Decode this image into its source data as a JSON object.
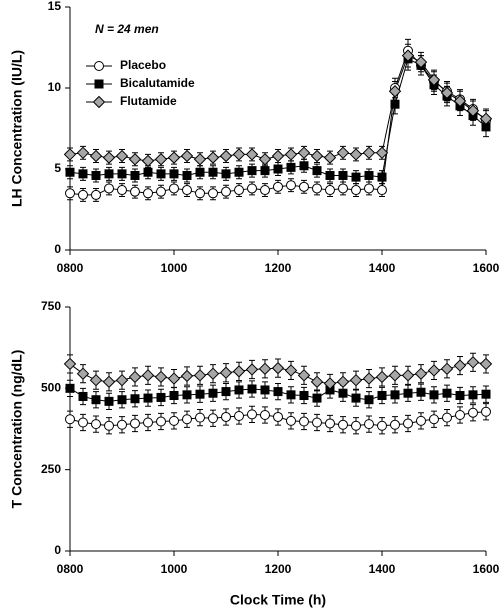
{
  "chart_data": [
    {
      "type": "line",
      "ylabel": "LH Concentration (IU/L)",
      "annotation": "N = 24 men",
      "legend": true,
      "xlim": [
        8,
        16
      ],
      "xticks": [
        {
          "value": 8,
          "label": "0800"
        },
        {
          "value": 10,
          "label": "1000"
        },
        {
          "value": 12,
          "label": "1200"
        },
        {
          "value": 14,
          "label": "1400"
        },
        {
          "value": 16,
          "label": "1600"
        }
      ],
      "ylim": [
        0,
        15
      ],
      "yticks": [
        0,
        5,
        10,
        15
      ],
      "x": [
        8,
        8.25,
        8.5,
        8.75,
        9,
        9.25,
        9.5,
        9.75,
        10,
        10.25,
        10.5,
        10.75,
        11,
        11.25,
        11.5,
        11.75,
        12,
        12.25,
        12.5,
        12.75,
        13,
        13.25,
        13.5,
        13.75,
        14,
        14.25,
        14.5,
        14.75,
        15,
        15.25,
        15.5,
        15.75,
        16
      ],
      "series": [
        {
          "name": "Placebo",
          "color": "#ffffff",
          "marker": "circle",
          "values": [
            3.5,
            3.4,
            3.4,
            3.8,
            3.7,
            3.6,
            3.5,
            3.6,
            3.8,
            3.7,
            3.5,
            3.5,
            3.6,
            3.7,
            3.8,
            3.7,
            3.9,
            4.0,
            3.9,
            3.8,
            3.7,
            3.8,
            3.7,
            3.8,
            3.7,
            10.0,
            12.3,
            11.4,
            10.4,
            9.8,
            9.3,
            8.7,
            8.0
          ],
          "errors": [
            0.4,
            0.4,
            0.4,
            0.4,
            0.4,
            0.4,
            0.4,
            0.4,
            0.4,
            0.4,
            0.4,
            0.4,
            0.4,
            0.4,
            0.4,
            0.4,
            0.4,
            0.4,
            0.4,
            0.4,
            0.4,
            0.4,
            0.4,
            0.4,
            0.4,
            0.6,
            0.7,
            0.6,
            0.6,
            0.6,
            0.6,
            0.6,
            0.6
          ]
        },
        {
          "name": "Bicalutamide",
          "color": "#000000",
          "marker": "square",
          "values": [
            4.8,
            4.7,
            4.6,
            4.7,
            4.7,
            4.6,
            4.8,
            4.7,
            4.7,
            4.6,
            4.8,
            4.8,
            4.7,
            4.8,
            4.9,
            4.9,
            5.0,
            5.1,
            5.2,
            4.9,
            4.6,
            4.6,
            4.5,
            4.6,
            4.5,
            9.0,
            11.8,
            11.4,
            10.2,
            9.5,
            8.9,
            8.3,
            7.6
          ],
          "errors": [
            0.4,
            0.4,
            0.4,
            0.4,
            0.4,
            0.4,
            0.4,
            0.4,
            0.4,
            0.4,
            0.4,
            0.4,
            0.4,
            0.4,
            0.4,
            0.4,
            0.4,
            0.4,
            0.4,
            0.4,
            0.4,
            0.4,
            0.4,
            0.4,
            0.4,
            0.6,
            0.7,
            0.6,
            0.6,
            0.6,
            0.6,
            0.6,
            0.6
          ]
        },
        {
          "name": "Flutamide",
          "color": "#a6a6a6",
          "marker": "diamond",
          "values": [
            5.9,
            6.0,
            5.8,
            5.7,
            5.8,
            5.6,
            5.5,
            5.6,
            5.7,
            5.8,
            5.6,
            5.7,
            5.8,
            5.9,
            5.9,
            5.6,
            5.8,
            5.9,
            6.0,
            5.8,
            5.7,
            6.0,
            5.9,
            6.0,
            6.0,
            9.8,
            12.0,
            11.6,
            10.5,
            9.7,
            9.2,
            8.6,
            8.1
          ],
          "errors": [
            0.4,
            0.4,
            0.4,
            0.4,
            0.4,
            0.4,
            0.4,
            0.4,
            0.4,
            0.4,
            0.4,
            0.4,
            0.4,
            0.4,
            0.4,
            0.4,
            0.4,
            0.4,
            0.4,
            0.4,
            0.4,
            0.4,
            0.4,
            0.4,
            0.4,
            0.6,
            0.7,
            0.6,
            0.6,
            0.6,
            0.6,
            0.6,
            0.6
          ]
        }
      ]
    },
    {
      "type": "line",
      "ylabel": "T Concentration (ng/dL)",
      "xlabel": "Clock Time (h)",
      "legend": false,
      "xlim": [
        8,
        16
      ],
      "xticks": [
        {
          "value": 8,
          "label": "0800"
        },
        {
          "value": 10,
          "label": "1000"
        },
        {
          "value": 12,
          "label": "1200"
        },
        {
          "value": 14,
          "label": "1400"
        },
        {
          "value": 16,
          "label": "1600"
        }
      ],
      "ylim": [
        0,
        750
      ],
      "yticks": [
        0,
        250,
        500,
        750
      ],
      "x": [
        8,
        8.25,
        8.5,
        8.75,
        9,
        9.25,
        9.5,
        9.75,
        10,
        10.25,
        10.5,
        10.75,
        11,
        11.25,
        11.5,
        11.75,
        12,
        12.25,
        12.5,
        12.75,
        13,
        13.25,
        13.5,
        13.75,
        14,
        14.25,
        14.5,
        14.75,
        15,
        15.25,
        15.5,
        15.75,
        16
      ],
      "series": [
        {
          "color": "#ffffff",
          "marker": "circle",
          "values": [
            405,
            395,
            390,
            385,
            388,
            392,
            395,
            398,
            400,
            405,
            410,
            408,
            412,
            415,
            420,
            418,
            412,
            400,
            398,
            395,
            392,
            388,
            385,
            390,
            385,
            388,
            392,
            400,
            405,
            410,
            418,
            425,
            428
          ],
          "errors": [
            25,
            25,
            25,
            25,
            25,
            25,
            25,
            25,
            25,
            25,
            25,
            25,
            25,
            25,
            25,
            25,
            25,
            25,
            25,
            25,
            25,
            25,
            25,
            25,
            25,
            25,
            25,
            25,
            25,
            25,
            25,
            25,
            25
          ]
        },
        {
          "color": "#000000",
          "marker": "square",
          "values": [
            500,
            475,
            465,
            460,
            465,
            468,
            470,
            472,
            478,
            480,
            482,
            485,
            490,
            495,
            498,
            495,
            490,
            480,
            478,
            470,
            495,
            485,
            470,
            465,
            478,
            480,
            485,
            488,
            480,
            485,
            478,
            480,
            482
          ],
          "errors": [
            25,
            25,
            25,
            25,
            25,
            25,
            25,
            25,
            25,
            25,
            25,
            25,
            25,
            25,
            25,
            25,
            25,
            25,
            25,
            25,
            25,
            25,
            25,
            25,
            25,
            25,
            25,
            25,
            25,
            25,
            25,
            25,
            25
          ]
        },
        {
          "color": "#a6a6a6",
          "marker": "diamond",
          "values": [
            575,
            545,
            525,
            520,
            525,
            535,
            540,
            535,
            530,
            538,
            540,
            545,
            548,
            552,
            558,
            560,
            562,
            555,
            540,
            520,
            515,
            520,
            525,
            530,
            535,
            540,
            540,
            545,
            555,
            560,
            570,
            580,
            575
          ],
          "errors": [
            28,
            28,
            28,
            28,
            28,
            28,
            28,
            28,
            28,
            28,
            28,
            28,
            28,
            28,
            28,
            28,
            28,
            28,
            28,
            28,
            28,
            28,
            28,
            28,
            28,
            28,
            28,
            28,
            28,
            28,
            28,
            28,
            28
          ]
        }
      ]
    }
  ]
}
